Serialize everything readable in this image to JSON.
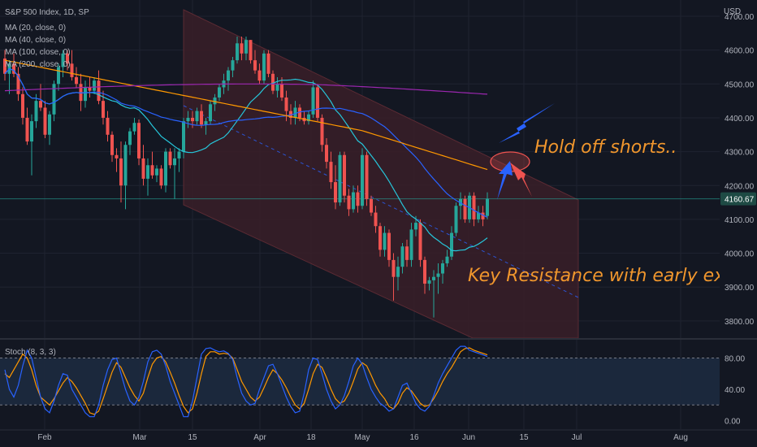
{
  "header": {
    "symbol": "S&P 500 Index, 1D, SP",
    "ma_labels": [
      "MA (20, close, 0)",
      "MA (40, close, 0)",
      "MA (100, close, 0)",
      "MA (200, close, 0)"
    ],
    "currency": "USD",
    "stoch_label": "Stoch (8, 3, 3)"
  },
  "chart_data": [
    {
      "type": "candlestick",
      "title": "S&P 500 Index, 1D, SP",
      "y_unit": "USD",
      "ylim": [
        3760,
        4720
      ],
      "y_ticks": [
        "4700.00",
        "4600.00",
        "4500.00",
        "4400.00",
        "4300.00",
        "4200.00",
        "4100.00",
        "4000.00",
        "3900.00",
        "3800.00"
      ],
      "x_ticks": [
        "Feb",
        "Mar",
        "15",
        "Apr",
        "18",
        "May",
        "16",
        "Jun",
        "15",
        "Jul",
        "Aug"
      ],
      "last_price_label": "4160.67",
      "colors": {
        "up": "#26a69a",
        "down": "#ef5350",
        "ma20": "#26c6da",
        "ma40": "#2962ff",
        "ma100": "#ff9800",
        "ma200": "#9c27b0",
        "channel": "#3a1e28",
        "channel_mid": "#2962ff",
        "annotation": "#f0962d",
        "arrow_blue": "#2962ff",
        "arrow_red": "#ef5350"
      },
      "annotations": [
        "Hold off shorts..",
        "Key Resistance with early exit."
      ],
      "candles": [
        {
          "o": 4575,
          "h": 4600,
          "l": 4510,
          "c": 4530
        },
        {
          "o": 4530,
          "h": 4570,
          "l": 4470,
          "c": 4560
        },
        {
          "o": 4560,
          "h": 4590,
          "l": 4520,
          "c": 4530
        },
        {
          "o": 4530,
          "h": 4550,
          "l": 4450,
          "c": 4470
        },
        {
          "o": 4470,
          "h": 4490,
          "l": 4380,
          "c": 4400
        },
        {
          "o": 4400,
          "h": 4430,
          "l": 4320,
          "c": 4330
        },
        {
          "o": 4330,
          "h": 4410,
          "l": 4230,
          "c": 4390
        },
        {
          "o": 4390,
          "h": 4470,
          "l": 4370,
          "c": 4450
        },
        {
          "o": 4450,
          "h": 4500,
          "l": 4420,
          "c": 4430
        },
        {
          "o": 4430,
          "h": 4450,
          "l": 4340,
          "c": 4350
        },
        {
          "o": 4350,
          "h": 4420,
          "l": 4320,
          "c": 4410
        },
        {
          "o": 4410,
          "h": 4510,
          "l": 4390,
          "c": 4500
        },
        {
          "o": 4500,
          "h": 4560,
          "l": 4480,
          "c": 4550
        },
        {
          "o": 4550,
          "h": 4600,
          "l": 4520,
          "c": 4590
        },
        {
          "o": 4590,
          "h": 4600,
          "l": 4540,
          "c": 4560
        },
        {
          "o": 4560,
          "h": 4600,
          "l": 4510,
          "c": 4520
        },
        {
          "o": 4520,
          "h": 4550,
          "l": 4490,
          "c": 4500
        },
        {
          "o": 4500,
          "h": 4530,
          "l": 4420,
          "c": 4450
        },
        {
          "o": 4450,
          "h": 4510,
          "l": 4430,
          "c": 4490
        },
        {
          "o": 4490,
          "h": 4520,
          "l": 4460,
          "c": 4480
        },
        {
          "o": 4480,
          "h": 4520,
          "l": 4470,
          "c": 4510
        },
        {
          "o": 4510,
          "h": 4540,
          "l": 4440,
          "c": 4450
        },
        {
          "o": 4450,
          "h": 4480,
          "l": 4380,
          "c": 4400
        },
        {
          "o": 4400,
          "h": 4420,
          "l": 4330,
          "c": 4350
        },
        {
          "o": 4350,
          "h": 4360,
          "l": 4270,
          "c": 4290
        },
        {
          "o": 4290,
          "h": 4310,
          "l": 4240,
          "c": 4280
        },
        {
          "o": 4280,
          "h": 4330,
          "l": 4150,
          "c": 4200
        },
        {
          "o": 4200,
          "h": 4330,
          "l": 4130,
          "c": 4320
        },
        {
          "o": 4320,
          "h": 4370,
          "l": 4290,
          "c": 4360
        },
        {
          "o": 4360,
          "h": 4400,
          "l": 4350,
          "c": 4385
        },
        {
          "o": 4385,
          "h": 4395,
          "l": 4260,
          "c": 4280
        },
        {
          "o": 4280,
          "h": 4320,
          "l": 4200,
          "c": 4220
        },
        {
          "o": 4220,
          "h": 4280,
          "l": 4170,
          "c": 4260
        },
        {
          "o": 4260,
          "h": 4300,
          "l": 4220,
          "c": 4230
        },
        {
          "o": 4230,
          "h": 4260,
          "l": 4210,
          "c": 4250
        },
        {
          "o": 4250,
          "h": 4260,
          "l": 4190,
          "c": 4200
        },
        {
          "o": 4200,
          "h": 4310,
          "l": 4180,
          "c": 4300
        },
        {
          "o": 4300,
          "h": 4310,
          "l": 4250,
          "c": 4260
        },
        {
          "o": 4260,
          "h": 4310,
          "l": 4160,
          "c": 4280
        },
        {
          "o": 4280,
          "h": 4310,
          "l": 4240,
          "c": 4300
        },
        {
          "o": 4300,
          "h": 4400,
          "l": 4280,
          "c": 4390
        },
        {
          "o": 4390,
          "h": 4420,
          "l": 4370,
          "c": 4400
        },
        {
          "o": 4400,
          "h": 4420,
          "l": 4370,
          "c": 4390
        },
        {
          "o": 4390,
          "h": 4430,
          "l": 4380,
          "c": 4420
        },
        {
          "o": 4420,
          "h": 4440,
          "l": 4370,
          "c": 4380
        },
        {
          "o": 4380,
          "h": 4400,
          "l": 4350,
          "c": 4390
        },
        {
          "o": 4390,
          "h": 4450,
          "l": 4380,
          "c": 4440
        },
        {
          "o": 4440,
          "h": 4470,
          "l": 4420,
          "c": 4460
        },
        {
          "o": 4460,
          "h": 4500,
          "l": 4450,
          "c": 4490
        },
        {
          "o": 4490,
          "h": 4530,
          "l": 4470,
          "c": 4510
        },
        {
          "o": 4510,
          "h": 4550,
          "l": 4480,
          "c": 4540
        },
        {
          "o": 4540,
          "h": 4580,
          "l": 4520,
          "c": 4570
        },
        {
          "o": 4570,
          "h": 4640,
          "l": 4560,
          "c": 4620
        },
        {
          "o": 4620,
          "h": 4640,
          "l": 4570,
          "c": 4590
        },
        {
          "o": 4590,
          "h": 4640,
          "l": 4570,
          "c": 4630
        },
        {
          "o": 4630,
          "h": 4630,
          "l": 4560,
          "c": 4570
        },
        {
          "o": 4570,
          "h": 4600,
          "l": 4530,
          "c": 4540
        },
        {
          "o": 4540,
          "h": 4560,
          "l": 4500,
          "c": 4510
        },
        {
          "o": 4510,
          "h": 4600,
          "l": 4500,
          "c": 4590
        },
        {
          "o": 4590,
          "h": 4600,
          "l": 4520,
          "c": 4530
        },
        {
          "o": 4530,
          "h": 4540,
          "l": 4470,
          "c": 4480
        },
        {
          "o": 4480,
          "h": 4520,
          "l": 4460,
          "c": 4500
        },
        {
          "o": 4500,
          "h": 4520,
          "l": 4450,
          "c": 4460
        },
        {
          "o": 4460,
          "h": 4480,
          "l": 4390,
          "c": 4420
        },
        {
          "o": 4420,
          "h": 4440,
          "l": 4380,
          "c": 4400
        },
        {
          "o": 4400,
          "h": 4450,
          "l": 4380,
          "c": 4430
        },
        {
          "o": 4430,
          "h": 4440,
          "l": 4390,
          "c": 4400
        },
        {
          "o": 4400,
          "h": 4420,
          "l": 4380,
          "c": 4390
        },
        {
          "o": 4390,
          "h": 4420,
          "l": 4380,
          "c": 4410
        },
        {
          "o": 4410,
          "h": 4510,
          "l": 4400,
          "c": 4490
        },
        {
          "o": 4490,
          "h": 4500,
          "l": 4390,
          "c": 4400
        },
        {
          "o": 4400,
          "h": 4410,
          "l": 4300,
          "c": 4320
        },
        {
          "o": 4320,
          "h": 4340,
          "l": 4250,
          "c": 4270
        },
        {
          "o": 4270,
          "h": 4300,
          "l": 4190,
          "c": 4210
        },
        {
          "o": 4210,
          "h": 4260,
          "l": 4130,
          "c": 4150
        },
        {
          "o": 4150,
          "h": 4300,
          "l": 4140,
          "c": 4290
        },
        {
          "o": 4290,
          "h": 4300,
          "l": 4150,
          "c": 4170
        },
        {
          "o": 4170,
          "h": 4190,
          "l": 4110,
          "c": 4130
        },
        {
          "o": 4130,
          "h": 4200,
          "l": 4120,
          "c": 4180
        },
        {
          "o": 4180,
          "h": 4200,
          "l": 4120,
          "c": 4140
        },
        {
          "o": 4140,
          "h": 4310,
          "l": 4130,
          "c": 4290
        },
        {
          "o": 4290,
          "h": 4300,
          "l": 4140,
          "c": 4160
        },
        {
          "o": 4160,
          "h": 4170,
          "l": 4110,
          "c": 4120
        },
        {
          "o": 4120,
          "h": 4140,
          "l": 4060,
          "c": 4080
        },
        {
          "o": 4080,
          "h": 4090,
          "l": 3990,
          "c": 4010
        },
        {
          "o": 4010,
          "h": 4080,
          "l": 3990,
          "c": 4060
        },
        {
          "o": 4060,
          "h": 4070,
          "l": 3960,
          "c": 3980
        },
        {
          "o": 3980,
          "h": 4000,
          "l": 3860,
          "c": 3930
        },
        {
          "o": 3930,
          "h": 3990,
          "l": 3890,
          "c": 3960
        },
        {
          "o": 3960,
          "h": 4030,
          "l": 3940,
          "c": 4020
        },
        {
          "o": 4020,
          "h": 4040,
          "l": 3960,
          "c": 3980
        },
        {
          "o": 3980,
          "h": 4090,
          "l": 3960,
          "c": 4070
        },
        {
          "o": 4070,
          "h": 4110,
          "l": 4050,
          "c": 4090
        },
        {
          "o": 4090,
          "h": 4100,
          "l": 3960,
          "c": 3980
        },
        {
          "o": 3980,
          "h": 3990,
          "l": 3880,
          "c": 3910
        },
        {
          "o": 3910,
          "h": 3930,
          "l": 3890,
          "c": 3920
        },
        {
          "o": 3920,
          "h": 3950,
          "l": 3810,
          "c": 3930
        },
        {
          "o": 3930,
          "h": 3970,
          "l": 3880,
          "c": 3940
        },
        {
          "o": 3940,
          "h": 3980,
          "l": 3910,
          "c": 3970
        },
        {
          "o": 3970,
          "h": 4010,
          "l": 3960,
          "c": 3990
        },
        {
          "o": 3990,
          "h": 4080,
          "l": 3980,
          "c": 4060
        },
        {
          "o": 4060,
          "h": 4150,
          "l": 4050,
          "c": 4140
        },
        {
          "o": 4140,
          "h": 4180,
          "l": 4100,
          "c": 4160
        },
        {
          "o": 4160,
          "h": 4170,
          "l": 4090,
          "c": 4100
        },
        {
          "o": 4100,
          "h": 4180,
          "l": 4090,
          "c": 4170
        },
        {
          "o": 4170,
          "h": 4180,
          "l": 4080,
          "c": 4100
        },
        {
          "o": 4100,
          "h": 4140,
          "l": 4090,
          "c": 4120
        },
        {
          "o": 4120,
          "h": 4140,
          "l": 4080,
          "c": 4100
        },
        {
          "o": 4110,
          "h": 4180,
          "l": 4100,
          "c": 4160.67
        }
      ]
    },
    {
      "type": "line",
      "title": "Stoch (8, 3, 3)",
      "ylim": [
        -5,
        105
      ],
      "y_ticks": [
        "80.00",
        "40.00",
        "0.00"
      ],
      "band": [
        20,
        80
      ],
      "series": [
        {
          "values": [
            60,
            55,
            65,
            75,
            85,
            80,
            65,
            45,
            30,
            25,
            20,
            28,
            38,
            48,
            55,
            50,
            42,
            32,
            22,
            10,
            8,
            12,
            28,
            45,
            62,
            74,
            68,
            55,
            42,
            32,
            25,
            35,
            55,
            72,
            80,
            82,
            75,
            62,
            48,
            32,
            18,
            10,
            15,
            35,
            60,
            82,
            88,
            88,
            85,
            86,
            85,
            80,
            65,
            50,
            40,
            30,
            25,
            30,
            42,
            55,
            65,
            60,
            52,
            42,
            30,
            20,
            15,
            22,
            40,
            60,
            72,
            68,
            55,
            40,
            28,
            22,
            25,
            35,
            50,
            66,
            74,
            70,
            58,
            45,
            35,
            28,
            18,
            15,
            22,
            35,
            42,
            38,
            30,
            22,
            18,
            20,
            28,
            38,
            50,
            60,
            68,
            78,
            88,
            92,
            93,
            90,
            88,
            86,
            84
          ]
        },
        {
          "values": [
            65,
            40,
            30,
            45,
            70,
            90,
            80,
            55,
            30,
            15,
            10,
            25,
            45,
            60,
            58,
            40,
            30,
            20,
            10,
            5,
            5,
            20,
            45,
            65,
            78,
            80,
            60,
            40,
            25,
            20,
            30,
            50,
            75,
            88,
            90,
            85,
            70,
            50,
            35,
            20,
            5,
            5,
            25,
            55,
            85,
            92,
            93,
            90,
            88,
            89,
            86,
            78,
            55,
            35,
            25,
            20,
            22,
            40,
            55,
            70,
            72,
            60,
            45,
            30,
            18,
            10,
            12,
            35,
            65,
            80,
            78,
            60,
            40,
            25,
            15,
            20,
            32,
            50,
            70,
            80,
            72,
            55,
            40,
            30,
            22,
            18,
            12,
            15,
            30,
            45,
            48,
            35,
            22,
            15,
            12,
            18,
            32,
            48,
            60,
            70,
            80,
            90,
            95,
            95,
            90,
            88,
            86,
            84,
            82
          ]
        }
      ]
    }
  ]
}
